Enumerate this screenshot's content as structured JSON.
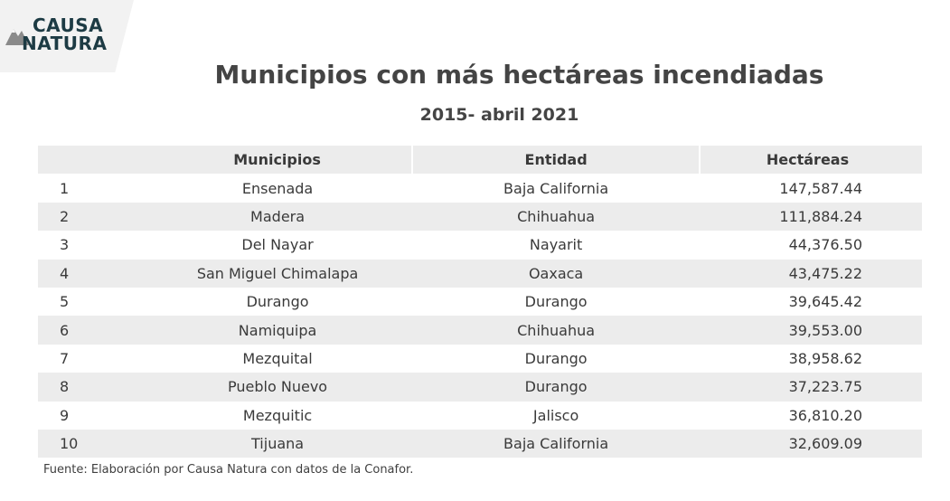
{
  "logo": {
    "line1": "CAUSA",
    "line2": "NATURA"
  },
  "title": "Municipios con más hectáreas incendiadas",
  "subtitle": "2015- abril 2021",
  "chart_data": {
    "type": "table",
    "title": "Municipios con más hectáreas incendiadas",
    "subtitle": "2015- abril 2021",
    "columns": [
      "",
      "Municipios",
      "Entidad",
      "Hectáreas"
    ],
    "rows": [
      [
        "1",
        "Ensenada",
        "Baja California",
        "147,587.44"
      ],
      [
        "2",
        "Madera",
        "Chihuahua",
        "111,884.24"
      ],
      [
        "3",
        "Del Nayar",
        "Nayarit",
        "44,376.50"
      ],
      [
        "4",
        "San Miguel Chimalapa",
        "Oaxaca",
        "43,475.22"
      ],
      [
        "5",
        "Durango",
        "Durango",
        "39,645.42"
      ],
      [
        "6",
        "Namiquipa",
        "Chihuahua",
        "39,553.00"
      ],
      [
        "7",
        "Mezquital",
        "Durango",
        "38,958.62"
      ],
      [
        "8",
        "Pueblo Nuevo",
        "Durango",
        "37,223.75"
      ],
      [
        "9",
        "Mezquitic",
        "Jalisco",
        "36,810.20"
      ],
      [
        "10",
        "Tijuana",
        "Baja California",
        "32,609.09"
      ]
    ]
  },
  "source": "Fuente: Elaboración por Causa Natura con datos de la Conafor.",
  "colors": {
    "row_shade": "#ececec",
    "text": "#3a3a3a",
    "logo": "#1d3b44"
  }
}
